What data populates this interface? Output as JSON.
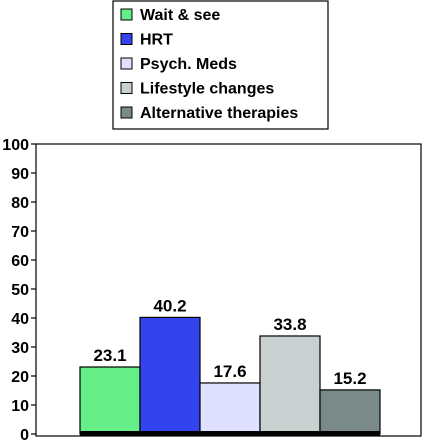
{
  "chart_data": {
    "type": "bar",
    "categories": [
      "Wait & see",
      "HRT",
      "Psych. Meds",
      "Lifestyle changes",
      "Alternative therapies"
    ],
    "values": [
      23.1,
      40.2,
      17.6,
      33.8,
      15.2
    ],
    "value_labels": [
      "23.1",
      "40.2",
      "17.6",
      "33.8",
      "15.2"
    ],
    "colors": [
      "#66ee88",
      "#3344ee",
      "#e0e0ff",
      "#c8d0d0",
      "#7a8a88"
    ],
    "ylim": [
      0,
      100
    ],
    "yticks": [
      0,
      10,
      20,
      30,
      40,
      50,
      60,
      70,
      80,
      90,
      100
    ],
    "legend_position": "top-center",
    "grid": false,
    "title": "",
    "xlabel": "",
    "ylabel": ""
  }
}
